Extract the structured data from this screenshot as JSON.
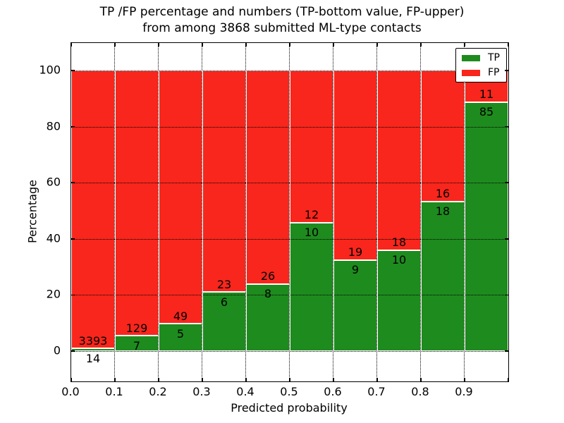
{
  "title": {
    "line1": "TP /FP percentage and numbers (TP-bottom value, FP-upper)",
    "line2": "from among 3868 submitted ML-type contacts"
  },
  "axes": {
    "xlabel": "Predicted probability",
    "ylabel": "Percentage",
    "x_tick_labels": [
      "0.0",
      "0.1",
      "0.2",
      "0.3",
      "0.4",
      "0.5",
      "0.6",
      "0.7",
      "0.8",
      "0.9"
    ],
    "y_tick_labels": [
      "0",
      "20",
      "40",
      "60",
      "80",
      "100"
    ],
    "y_tick_values": [
      0,
      20,
      40,
      60,
      80,
      100
    ]
  },
  "legend": {
    "items": [
      {
        "label": "TP",
        "color": "#1e8b1e"
      },
      {
        "label": "FP",
        "color": "#f8261c"
      }
    ]
  },
  "colors": {
    "tp_green": "#1e8b1e",
    "fp_red": "#f8261c",
    "grid": "#000000",
    "background": "#ffffff"
  },
  "chart_data": {
    "type": "bar",
    "subtype": "stacked-percentage",
    "title": "TP /FP percentage and numbers (TP-bottom value, FP-upper) from among 3868 submitted ML-type contacts",
    "xlabel": "Predicted probability",
    "ylabel": "Percentage",
    "total_submitted_contacts": 3868,
    "bin_edges": [
      0.0,
      0.1,
      0.2,
      0.3,
      0.4,
      0.5,
      0.6,
      0.7,
      0.8,
      0.9,
      1.0
    ],
    "categories": [
      "0.0-0.1",
      "0.1-0.2",
      "0.2-0.3",
      "0.3-0.4",
      "0.4-0.5",
      "0.5-0.6",
      "0.6-0.7",
      "0.7-0.8",
      "0.8-0.9",
      "0.9-1.0"
    ],
    "series": [
      {
        "name": "TP",
        "color": "#1e8b1e",
        "counts": [
          14,
          7,
          5,
          6,
          8,
          10,
          9,
          10,
          18,
          85
        ]
      },
      {
        "name": "FP",
        "color": "#f8261c",
        "counts": [
          3393,
          129,
          49,
          23,
          26,
          12,
          19,
          18,
          16,
          11
        ]
      }
    ],
    "bar_height_rule": "green TP segment height = TP/(TP+FP)*100 percent, red FP segment fills to 100 percent; counts are annotated at the TP/FP boundary (FP count above, TP count below)",
    "tp_percent_per_bin": [
      0.41,
      5.15,
      9.26,
      20.69,
      23.53,
      45.45,
      32.14,
      35.71,
      52.94,
      88.54
    ],
    "xlim": [
      0.0,
      1.0
    ],
    "ylim": [
      -10.8,
      109.8
    ],
    "grid": "dotted black, vertical at x ticks and horizontal at y ticks, drawn above bars",
    "bar_edge_color": "#ffffff",
    "legend_position": "upper right"
  }
}
